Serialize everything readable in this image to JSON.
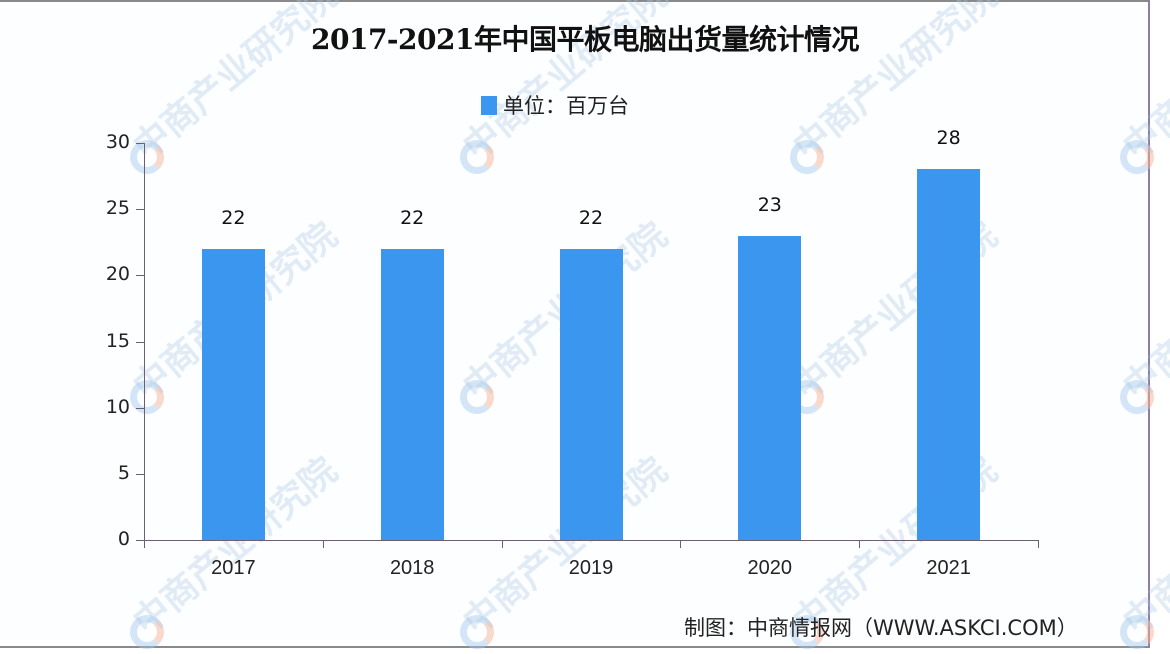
{
  "chart_data": {
    "type": "bar",
    "title": "2017-2021年中国平板电脑出货量统计情况",
    "categories": [
      "2017",
      "2018",
      "2019",
      "2020",
      "2021"
    ],
    "series": [
      {
        "name": "单位：百万台",
        "values": [
          22,
          22,
          22,
          23,
          28
        ]
      }
    ],
    "value_labels": [
      "22",
      "22",
      "22",
      "23",
      "28"
    ],
    "xlabel": "",
    "ylabel": "",
    "ylim": [
      0,
      30
    ],
    "yticks": [
      "0",
      "5",
      "10",
      "15",
      "20",
      "25",
      "30"
    ],
    "grid": false,
    "legend_position": "top",
    "bar_color": "#3a96ee"
  },
  "legend": {
    "label": "单位：百万台"
  },
  "footer": {
    "source": "制图：中商情报网（WWW.ASKCI.COM）"
  },
  "watermark": {
    "text": "中商产业研究院"
  }
}
